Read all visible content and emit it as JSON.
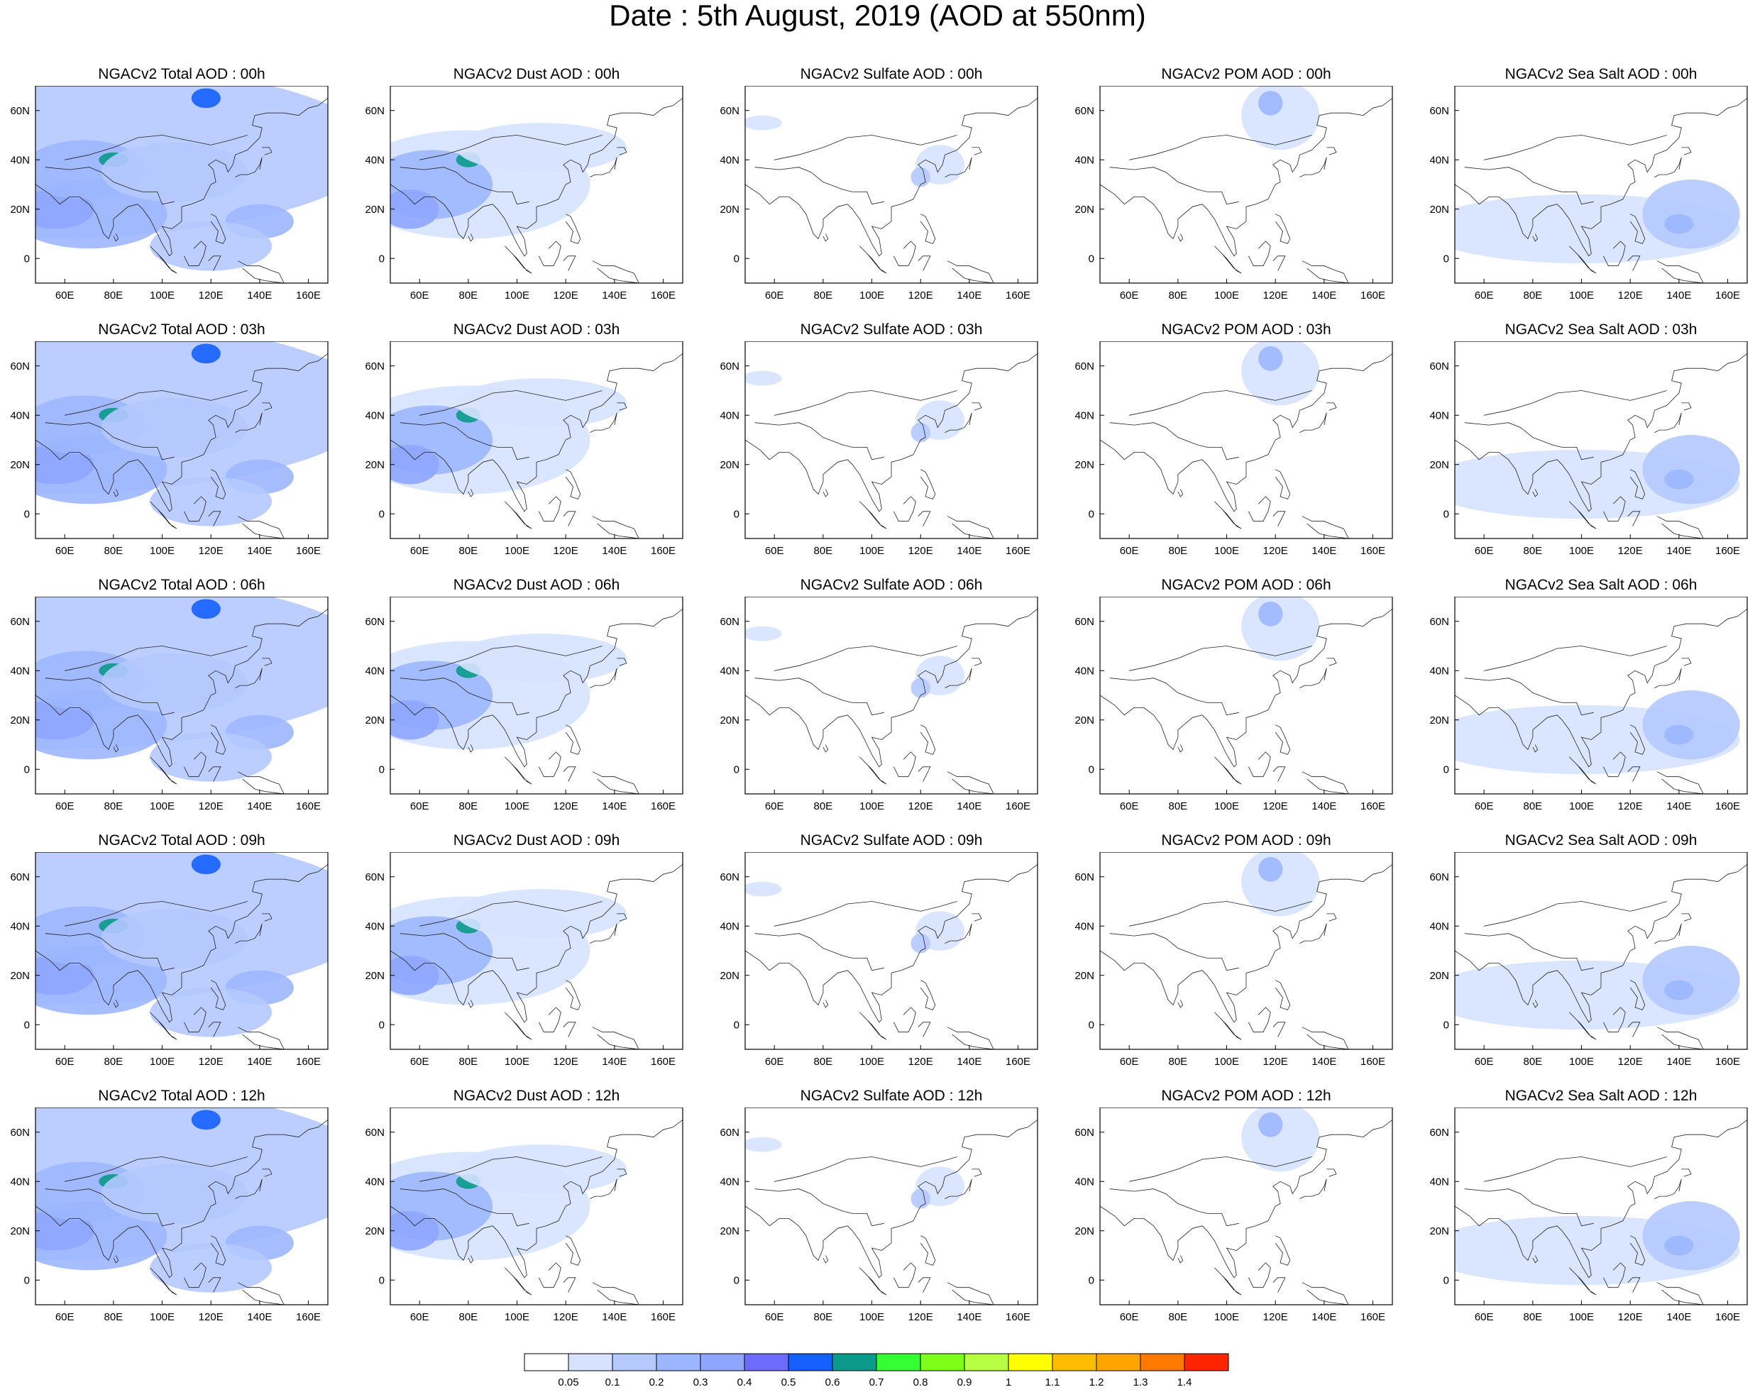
{
  "page": {
    "title": "Date : 5th August, 2019 (AOD at 550nm)"
  },
  "map": {
    "lon_ticks": [
      "60E",
      "80E",
      "100E",
      "120E",
      "140E",
      "160E"
    ],
    "lat_ticks": [
      "60N",
      "40N",
      "20N",
      "0"
    ],
    "lon_values": [
      60,
      80,
      100,
      120,
      140,
      160
    ],
    "lat_values": [
      60,
      40,
      20,
      0
    ],
    "lon_range": [
      48,
      168
    ],
    "lat_range": [
      -10,
      70
    ]
  },
  "panels": [
    {
      "title": "NGACv2 Total AOD : 00h",
      "species": "total",
      "hour": 0
    },
    {
      "title": "NGACv2 Dust AOD : 00h",
      "species": "dust",
      "hour": 0
    },
    {
      "title": "NGACv2 Sulfate AOD : 00h",
      "species": "sulfate",
      "hour": 0
    },
    {
      "title": "NGACv2 POM AOD : 00h",
      "species": "pom",
      "hour": 0
    },
    {
      "title": "NGACv2 Sea Salt AOD : 00h",
      "species": "seasalt",
      "hour": 0
    },
    {
      "title": "NGACv2 Total AOD : 03h",
      "species": "total",
      "hour": 3
    },
    {
      "title": "NGACv2 Dust AOD : 03h",
      "species": "dust",
      "hour": 3
    },
    {
      "title": "NGACv2 Sulfate AOD : 03h",
      "species": "sulfate",
      "hour": 3
    },
    {
      "title": "NGACv2 POM AOD : 03h",
      "species": "pom",
      "hour": 3
    },
    {
      "title": "NGACv2 Sea Salt AOD : 03h",
      "species": "seasalt",
      "hour": 3
    },
    {
      "title": "NGACv2 Total AOD : 06h",
      "species": "total",
      "hour": 6
    },
    {
      "title": "NGACv2 Dust AOD : 06h",
      "species": "dust",
      "hour": 6
    },
    {
      "title": "NGACv2 Sulfate AOD : 06h",
      "species": "sulfate",
      "hour": 6
    },
    {
      "title": "NGACv2 POM AOD : 06h",
      "species": "pom",
      "hour": 6
    },
    {
      "title": "NGACv2 Sea Salt AOD : 06h",
      "species": "seasalt",
      "hour": 6
    },
    {
      "title": "NGACv2 Total AOD : 09h",
      "species": "total",
      "hour": 9
    },
    {
      "title": "NGACv2 Dust AOD : 09h",
      "species": "dust",
      "hour": 9
    },
    {
      "title": "NGACv2 Sulfate AOD : 09h",
      "species": "sulfate",
      "hour": 9
    },
    {
      "title": "NGACv2 POM AOD : 09h",
      "species": "pom",
      "hour": 9
    },
    {
      "title": "NGACv2 Sea Salt  AOD : 09h",
      "species": "seasalt",
      "hour": 9
    },
    {
      "title": "NGACv2 Total AOD  : 12h",
      "species": "total",
      "hour": 12
    },
    {
      "title": "NGACv2 Dust AOD : 12h",
      "species": "dust",
      "hour": 12
    },
    {
      "title": "NGACv2 Sulfate AOD : 12h",
      "species": "sulfate",
      "hour": 12
    },
    {
      "title": "NGACv2 POM  AOD : 12h",
      "species": "pom",
      "hour": 12
    },
    {
      "title": "NGACv2 Sea Salt  AOD : 12h",
      "species": "seasalt",
      "hour": 12
    }
  ],
  "colorbar": {
    "colors": [
      "#ffffff",
      "#d6e2ff",
      "#b5c9ff",
      "#9cb7ff",
      "#8ea6ff",
      "#6c6cff",
      "#1560ff",
      "#0c9a8a",
      "#33ff33",
      "#7dff1a",
      "#b7ff42",
      "#ffff00",
      "#ffbd00",
      "#ffa500",
      "#ff7a00",
      "#ff2400"
    ],
    "labels": [
      "0.05",
      "0.1",
      "0.2",
      "0.3",
      "0.4",
      "0.5",
      "0.6",
      "0.7",
      "0.8",
      "0.9",
      "1",
      "1.1",
      "1.2",
      "1.3",
      "1.4"
    ]
  },
  "blobs": {
    "total": [
      {
        "lon": 48,
        "lat": 44,
        "rx": 140,
        "ry": 36,
        "level": 2
      },
      {
        "lon": 70,
        "lat": 18,
        "rx": 32,
        "ry": 14,
        "level": 3
      },
      {
        "lon": 56,
        "lat": 20,
        "rx": 16,
        "ry": 8,
        "level": 4
      },
      {
        "lon": 68,
        "lat": 36,
        "rx": 25,
        "ry": 12,
        "level": 3
      },
      {
        "lon": 80,
        "lat": 40,
        "rx": 6,
        "ry": 3,
        "level": 7
      },
      {
        "lon": 118,
        "lat": 65,
        "rx": 6,
        "ry": 4,
        "level": 6
      },
      {
        "lon": 140,
        "lat": 15,
        "rx": 14,
        "ry": 7,
        "level": 3
      },
      {
        "lon": 105,
        "lat": 35,
        "rx": 30,
        "ry": 12,
        "level": 2
      },
      {
        "lon": 120,
        "lat": 5,
        "rx": 25,
        "ry": 10,
        "level": 2
      }
    ],
    "dust": [
      {
        "lon": 80,
        "lat": 30,
        "rx": 50,
        "ry": 22,
        "level": 1
      },
      {
        "lon": 65,
        "lat": 30,
        "rx": 25,
        "ry": 14,
        "level": 3
      },
      {
        "lon": 56,
        "lat": 20,
        "rx": 12,
        "ry": 8,
        "level": 4
      },
      {
        "lon": 80,
        "lat": 40,
        "rx": 5,
        "ry": 3,
        "level": 7
      },
      {
        "lon": 110,
        "lat": 45,
        "rx": 35,
        "ry": 10,
        "level": 1
      }
    ],
    "sulfate": [
      {
        "lon": 55,
        "lat": 55,
        "rx": 8,
        "ry": 3,
        "level": 1
      },
      {
        "lon": 128,
        "lat": 38,
        "rx": 10,
        "ry": 8,
        "level": 1
      },
      {
        "lon": 120,
        "lat": 33,
        "rx": 4,
        "ry": 4,
        "level": 2
      }
    ],
    "pom": [
      {
        "lon": 122,
        "lat": 58,
        "rx": 16,
        "ry": 14,
        "level": 1
      },
      {
        "lon": 118,
        "lat": 63,
        "rx": 5,
        "ry": 5,
        "level": 3
      }
    ],
    "seasalt": [
      {
        "lon": 100,
        "lat": 12,
        "rx": 65,
        "ry": 14,
        "level": 1
      },
      {
        "lon": 145,
        "lat": 18,
        "rx": 20,
        "ry": 14,
        "level": 2
      },
      {
        "lon": 140,
        "lat": 14,
        "rx": 6,
        "ry": 4,
        "level": 3
      }
    ]
  }
}
